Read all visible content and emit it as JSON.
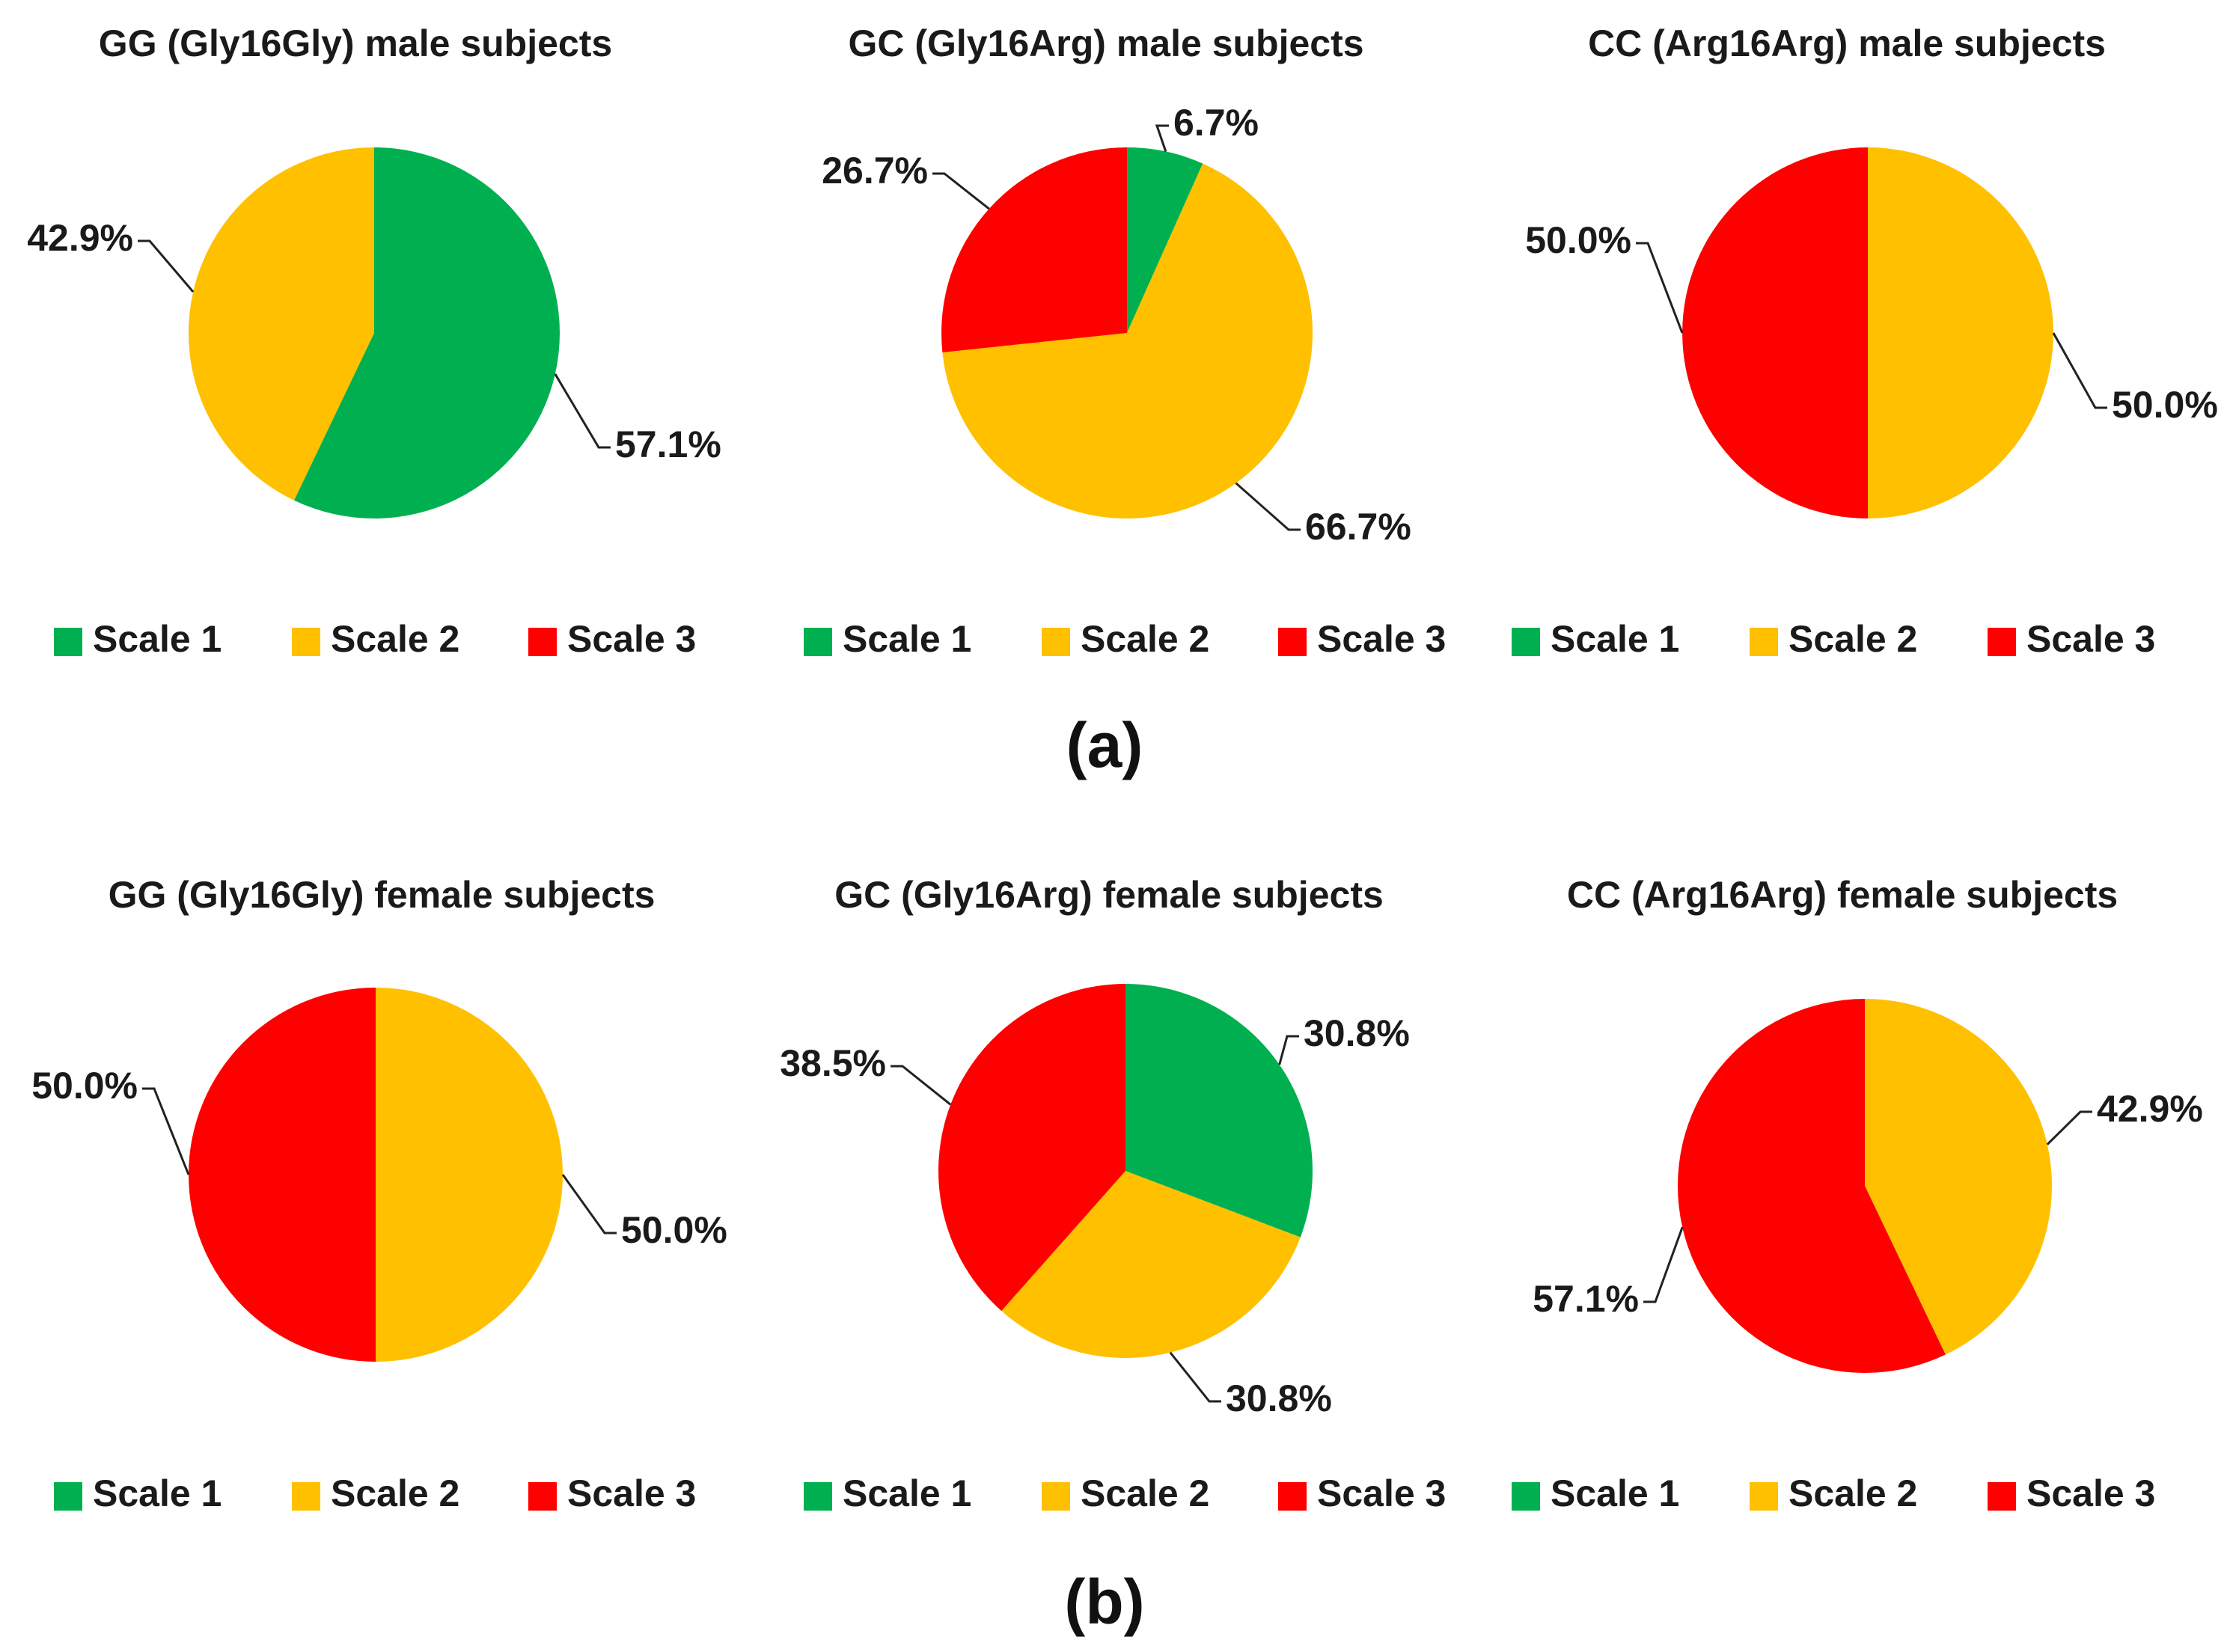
{
  "colors": {
    "Scale 1": "#00b050",
    "Scale 2": "#ffc000",
    "Scale 3": "#ff0000"
  },
  "panels": {
    "a": "(a)",
    "b": "(b)"
  },
  "chart_data": [
    {
      "type": "pie",
      "title": "GG (Gly16Gly) male subjects",
      "legend": [
        "Scale 1",
        "Scale 2",
        "Scale 3"
      ],
      "slices": [
        {
          "label": "Scale 1",
          "value": 57.1,
          "text": "57.1%"
        },
        {
          "label": "Scale 2",
          "value": 42.9,
          "text": "42.9%"
        }
      ]
    },
    {
      "type": "pie",
      "title": "GC (Gly16Arg) male subjects",
      "legend": [
        "Scale 1",
        "Scale 2",
        "Scale 3"
      ],
      "slices": [
        {
          "label": "Scale 1",
          "value": 6.7,
          "text": "6.7%"
        },
        {
          "label": "Scale 2",
          "value": 66.7,
          "text": "66.7%"
        },
        {
          "label": "Scale 3",
          "value": 26.7,
          "text": "26.7%"
        }
      ]
    },
    {
      "type": "pie",
      "title": "CC (Arg16Arg) male subjects",
      "legend": [
        "Scale 1",
        "Scale 2",
        "Scale 3"
      ],
      "slices": [
        {
          "label": "Scale 2",
          "value": 50.0,
          "text": "50.0%"
        },
        {
          "label": "Scale 3",
          "value": 50.0,
          "text": "50.0%"
        }
      ]
    },
    {
      "type": "pie",
      "title": "GG (Gly16Gly) female subjects",
      "legend": [
        "Scale 1",
        "Scale 2",
        "Scale 3"
      ],
      "slices": [
        {
          "label": "Scale 2",
          "value": 50.0,
          "text": "50.0%"
        },
        {
          "label": "Scale 3",
          "value": 50.0,
          "text": "50.0%"
        }
      ]
    },
    {
      "type": "pie",
      "title": "GC (Gly16Arg) female subjects",
      "legend": [
        "Scale 1",
        "Scale 2",
        "Scale 3"
      ],
      "slices": [
        {
          "label": "Scale 1",
          "value": 30.8,
          "text": "30.8%"
        },
        {
          "label": "Scale 2",
          "value": 30.8,
          "text": "30.8%"
        },
        {
          "label": "Scale 3",
          "value": 38.5,
          "text": "38.5%"
        }
      ]
    },
    {
      "type": "pie",
      "title": "CC (Arg16Arg) female subjects",
      "legend": [
        "Scale 1",
        "Scale 2",
        "Scale 3"
      ],
      "slices": [
        {
          "label": "Scale 2",
          "value": 42.9,
          "text": "42.9%"
        },
        {
          "label": "Scale 3",
          "value": 57.1,
          "text": "57.1%"
        }
      ]
    }
  ]
}
